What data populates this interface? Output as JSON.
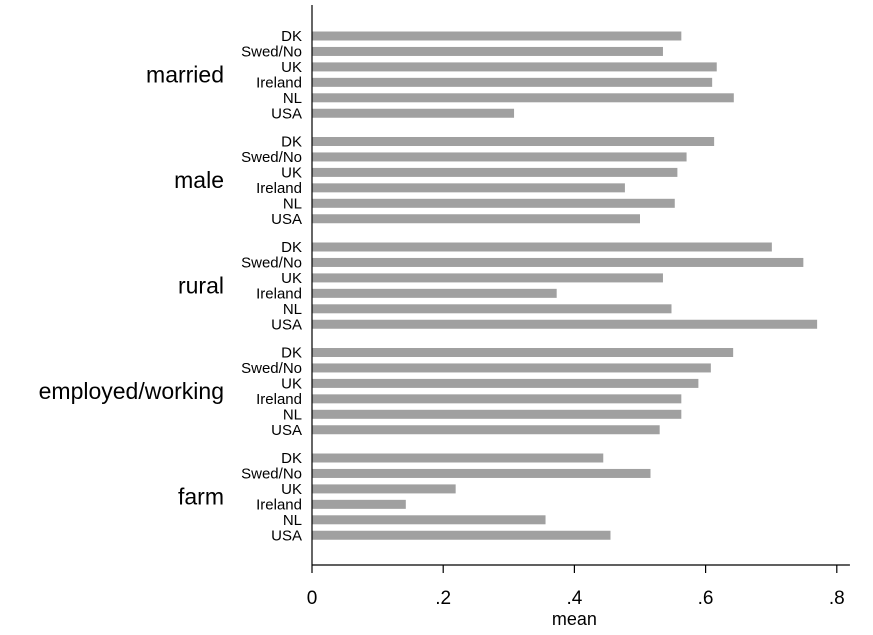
{
  "chart_data": {
    "type": "bar",
    "orientation": "horizontal",
    "xlabel": "mean",
    "xlim": [
      0,
      0.82
    ],
    "xticks": [
      {
        "value": 0,
        "label": "0"
      },
      {
        "value": 0.2,
        "label": ".2"
      },
      {
        "value": 0.4,
        "label": ".4"
      },
      {
        "value": 0.6,
        "label": ".6"
      },
      {
        "value": 0.8,
        "label": ".8"
      }
    ],
    "grid": false,
    "bar_color": "#a0a0a0",
    "categories": [
      "DK",
      "Swed/No",
      "UK",
      "Ireland",
      "NL",
      "USA"
    ],
    "groups": [
      {
        "name": "married",
        "values": [
          0.563,
          0.535,
          0.617,
          0.61,
          0.643,
          0.308
        ]
      },
      {
        "name": "male",
        "values": [
          0.613,
          0.571,
          0.557,
          0.477,
          0.553,
          0.5
        ]
      },
      {
        "name": "rural",
        "values": [
          0.701,
          0.749,
          0.535,
          0.373,
          0.548,
          0.77
        ]
      },
      {
        "name": "employed/working",
        "values": [
          0.642,
          0.608,
          0.589,
          0.563,
          0.563,
          0.53
        ]
      },
      {
        "name": "farm",
        "values": [
          0.444,
          0.516,
          0.219,
          0.143,
          0.356,
          0.455
        ]
      }
    ]
  }
}
